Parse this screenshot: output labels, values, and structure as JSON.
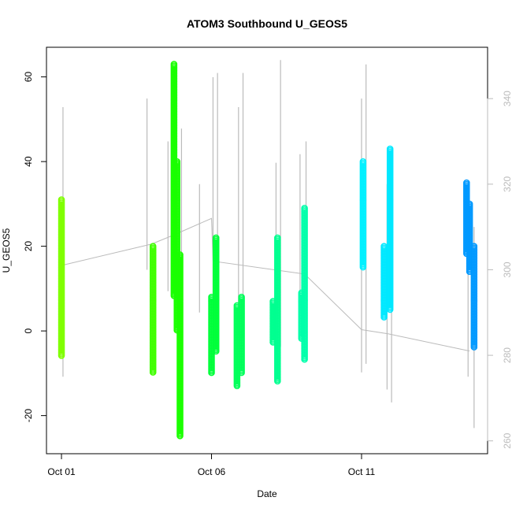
{
  "chart_data": {
    "type": "scatter",
    "title": "ATOM3 Southbound U_GEOS5",
    "xlabel": "Date",
    "ylabel": "U_GEOS5",
    "x_axis": {
      "unit": "day of October",
      "range": [
        0.5,
        15.2
      ],
      "ticks": [
        {
          "value": 1,
          "label": "Oct 01"
        },
        {
          "value": 6,
          "label": "Oct 06"
        },
        {
          "value": 11,
          "label": "Oct 11"
        }
      ]
    },
    "y_axis_left": {
      "range": [
        -29,
        67
      ],
      "ticks": [
        -20,
        0,
        20,
        40,
        60
      ]
    },
    "y_axis_right": {
      "range": [
        257,
        352
      ],
      "ticks": [
        260,
        280,
        300,
        320,
        340
      ],
      "color": "#bbbbbb"
    },
    "grid": false,
    "legend": "none",
    "series": [
      {
        "segments": [
          {
            "x": 1.0,
            "ymin": -6,
            "ymax": 31,
            "color": "#80FF00"
          },
          {
            "x": 4.05,
            "ymin": -10,
            "ymax": 20,
            "color": "#40FF00"
          },
          {
            "x": 4.75,
            "ymin": 8,
            "ymax": 63,
            "color": "#1AFF00"
          },
          {
            "x": 4.85,
            "ymin": 0,
            "ymax": 40,
            "color": "#1AFF00"
          },
          {
            "x": 4.95,
            "ymin": -25,
            "ymax": 18,
            "color": "#1AFF00"
          },
          {
            "x": 6.0,
            "ymin": -10,
            "ymax": 8,
            "color": "#00FF3A"
          },
          {
            "x": 6.15,
            "ymin": -5,
            "ymax": 22,
            "color": "#00FF3A"
          },
          {
            "x": 6.85,
            "ymin": -13,
            "ymax": 6,
            "color": "#00FF5A"
          },
          {
            "x": 7.0,
            "ymin": -10,
            "ymax": 8,
            "color": "#00FF5A"
          },
          {
            "x": 8.05,
            "ymin": -3,
            "ymax": 7,
            "color": "#00FF90"
          },
          {
            "x": 8.2,
            "ymin": -12,
            "ymax": 22,
            "color": "#00FF90"
          },
          {
            "x": 9.0,
            "ymin": -2,
            "ymax": 9,
            "color": "#00FFAA"
          },
          {
            "x": 9.1,
            "ymin": -7,
            "ymax": 29,
            "color": "#00FFAA"
          },
          {
            "x": 11.05,
            "ymin": 15,
            "ymax": 40,
            "color": "#00F0FF"
          },
          {
            "x": 11.75,
            "ymin": 3,
            "ymax": 20,
            "color": "#00E8FF"
          },
          {
            "x": 11.95,
            "ymin": 5,
            "ymax": 43,
            "color": "#00E8FF"
          },
          {
            "x": 14.5,
            "ymin": 18,
            "ymax": 35,
            "color": "#0099FF"
          },
          {
            "x": 14.6,
            "ymin": 14,
            "ymax": 30,
            "color": "#0099FF"
          },
          {
            "x": 14.75,
            "ymin": -4,
            "ymax": 20,
            "color": "#0099FF"
          }
        ]
      },
      {
        "axis": "right",
        "color": "#bbbbbb",
        "connector": [
          [
            1.0,
            301
          ],
          [
            4.0,
            306
          ],
          [
            4.7,
            308
          ],
          [
            6.0,
            312
          ],
          [
            6.05,
            302
          ],
          [
            9.1,
            299
          ],
          [
            11.0,
            286
          ],
          [
            11.9,
            285
          ],
          [
            14.6,
            281
          ]
        ],
        "traces": [
          {
            "x": 1.05,
            "ymin": 275,
            "ymax": 338
          },
          {
            "x": 3.85,
            "ymin": 300,
            "ymax": 340
          },
          {
            "x": 4.55,
            "ymin": 295,
            "ymax": 330
          },
          {
            "x": 5.0,
            "ymin": 298,
            "ymax": 333
          },
          {
            "x": 5.6,
            "ymin": 290,
            "ymax": 320
          },
          {
            "x": 6.05,
            "ymin": 280,
            "ymax": 345
          },
          {
            "x": 6.2,
            "ymin": 282,
            "ymax": 346
          },
          {
            "x": 6.9,
            "ymin": 285,
            "ymax": 338
          },
          {
            "x": 7.05,
            "ymin": 284,
            "ymax": 346
          },
          {
            "x": 8.15,
            "ymin": 280,
            "ymax": 325
          },
          {
            "x": 8.3,
            "ymin": 282,
            "ymax": 349
          },
          {
            "x": 8.95,
            "ymin": 290,
            "ymax": 327
          },
          {
            "x": 9.15,
            "ymin": 285,
            "ymax": 330
          },
          {
            "x": 11.0,
            "ymin": 276,
            "ymax": 340
          },
          {
            "x": 11.15,
            "ymin": 278,
            "ymax": 348
          },
          {
            "x": 11.85,
            "ymin": 272,
            "ymax": 320
          },
          {
            "x": 12.0,
            "ymin": 269,
            "ymax": 326
          },
          {
            "x": 14.55,
            "ymin": 275,
            "ymax": 305
          },
          {
            "x": 14.75,
            "ymin": 263,
            "ymax": 310
          }
        ]
      }
    ]
  }
}
